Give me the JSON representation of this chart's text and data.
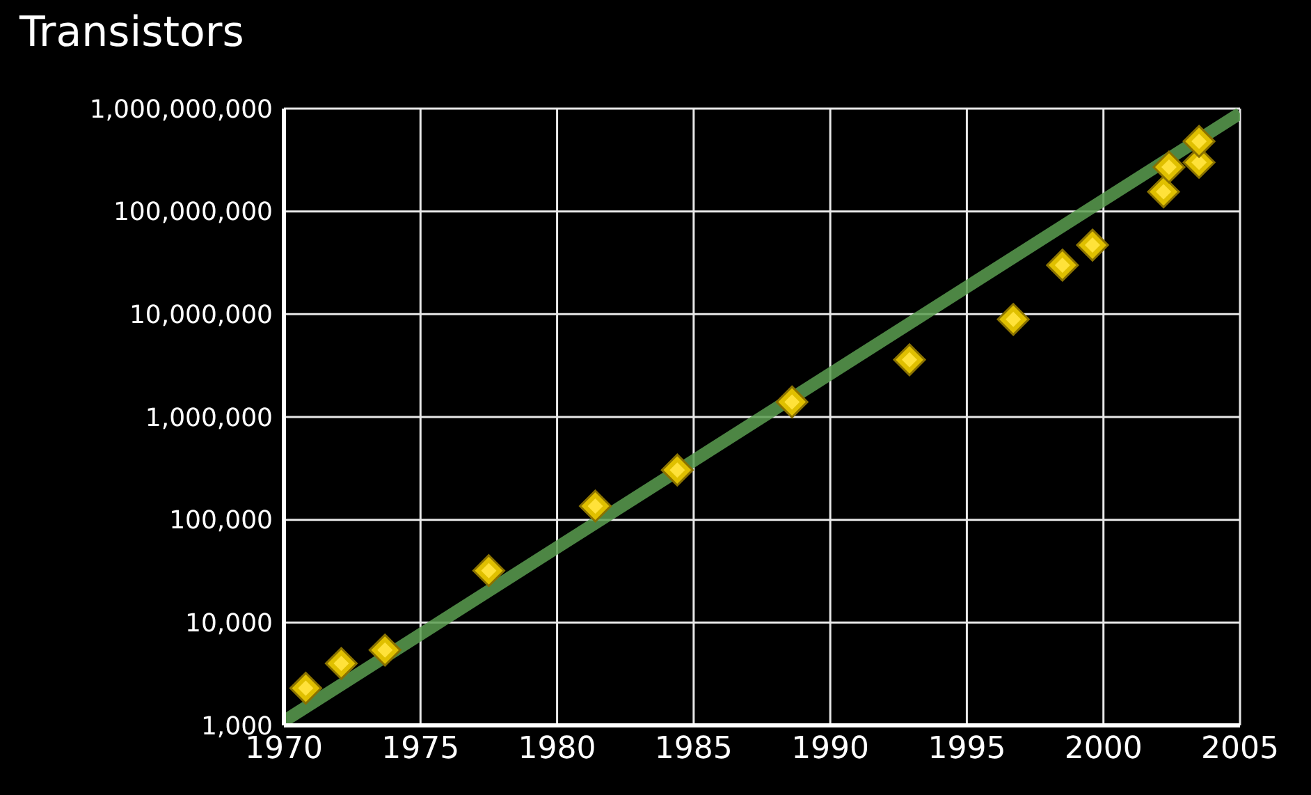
{
  "chart_data": {
    "type": "scatter",
    "title": "Transistors",
    "log": "y",
    "grid": true,
    "xlim": [
      1970,
      2005
    ],
    "xticks": [
      1970,
      1975,
      1980,
      1985,
      1990,
      1995,
      2000,
      2005
    ],
    "ylim": [
      1000,
      1000000000
    ],
    "yticks": [
      {
        "value": 1000,
        "label": "1,000"
      },
      {
        "value": 10000,
        "label": "10,000"
      },
      {
        "value": 100000,
        "label": "100,000"
      },
      {
        "value": 1000000,
        "label": "1,000,000"
      },
      {
        "value": 10000000,
        "label": "10,000,000"
      },
      {
        "value": 100000000,
        "label": "100,000,000"
      },
      {
        "value": 1000000000,
        "label": "1,000,000,000"
      }
    ],
    "series": [
      {
        "type": "line",
        "color": "#5a9e50",
        "line_style": "solid",
        "marker": "none",
        "x": [
          1970,
          2005
        ],
        "values": [
          1100,
          900000000
        ]
      },
      {
        "color": "#e0c000",
        "marker": "diamond",
        "x": [
          1970.8,
          1972.1,
          1973.7,
          1977.5,
          1981.4,
          1984.4,
          1988.6,
          1992.9,
          1996.7,
          1998.5,
          1999.6,
          2002.2,
          2002.4,
          2003.5,
          2003.5
        ],
        "values": [
          2300,
          4000,
          5400,
          32000,
          136000,
          305000,
          1400000,
          3600000,
          8900000,
          30000000,
          47000000,
          155000000,
          270000000,
          300000000,
          480000000
        ]
      }
    ]
  }
}
